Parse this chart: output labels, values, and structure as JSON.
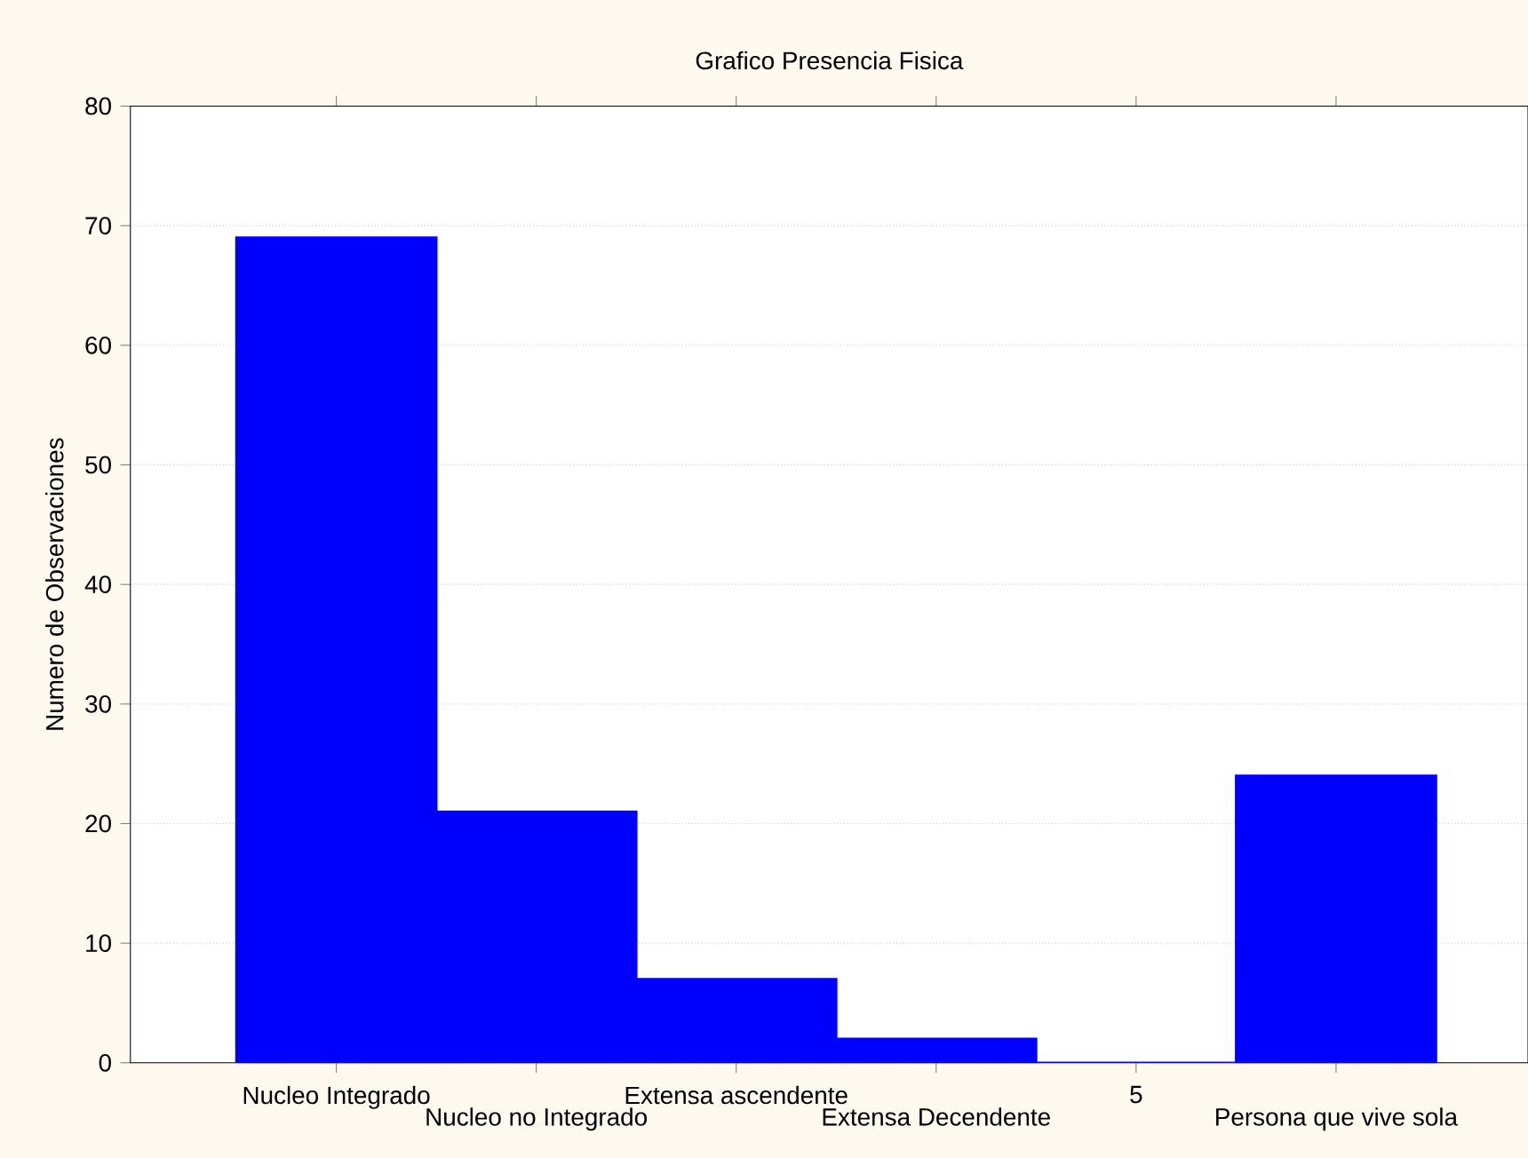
{
  "chart_data": {
    "type": "bar",
    "title": "Grafico Presencia Fisica",
    "ylabel": "Numero de Observaciones",
    "categories": [
      "Nucleo Integrado",
      "Nucleo no Integrado",
      "Extensa ascendente",
      "Extensa Decendente",
      "5",
      "Persona que vive sola"
    ],
    "values": [
      69,
      21,
      7,
      2,
      0,
      24
    ],
    "color": "#0000ff",
    "ylim": [
      0,
      80
    ],
    "yticks": [
      0,
      10,
      20,
      30,
      40,
      50,
      60,
      70,
      80
    ],
    "grid": "y"
  }
}
